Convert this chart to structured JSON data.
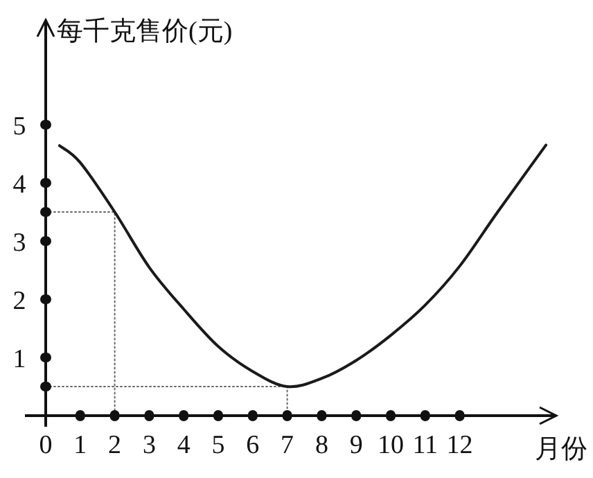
{
  "chart_data": {
    "type": "line",
    "ylabel": "每千克售价(元)",
    "xlabel": "月份",
    "x": [
      0.4,
      1,
      2,
      3,
      4,
      5,
      6,
      7,
      8,
      9,
      10,
      11,
      12,
      13.1,
      14.5
    ],
    "series": [
      {
        "color": "#1a1a1a",
        "values": [
          4.64,
          4.35,
          3.5,
          2.55,
          1.83,
          1.19,
          0.76,
          0.5,
          0.64,
          0.95,
          1.38,
          1.9,
          2.57,
          3.5,
          4.65
        ]
      },
      {
        "x": [
          0,
          2,
          2
        ],
        "values": [
          3.5,
          3.5,
          0
        ],
        "color": "#666666",
        "line_style": "dotted"
      },
      {
        "x": [
          0,
          7,
          7
        ],
        "values": [
          0.5,
          0.5,
          0
        ],
        "color": "#666666",
        "line_style": "dotted"
      }
    ],
    "xlim": [
      0,
      14.8
    ],
    "ylim": [
      0,
      6.8
    ],
    "xticks": [
      {
        "value": 0,
        "label": "0"
      },
      1,
      2,
      3,
      4,
      5,
      6,
      7,
      8,
      9,
      10,
      11,
      12
    ],
    "yticks": [
      {
        "value": 0.5,
        "label": null
      },
      1,
      2,
      3,
      {
        "value": 3.5,
        "label": null
      },
      4,
      5
    ],
    "grid": false,
    "marker": "none",
    "line_style": "solid"
  }
}
